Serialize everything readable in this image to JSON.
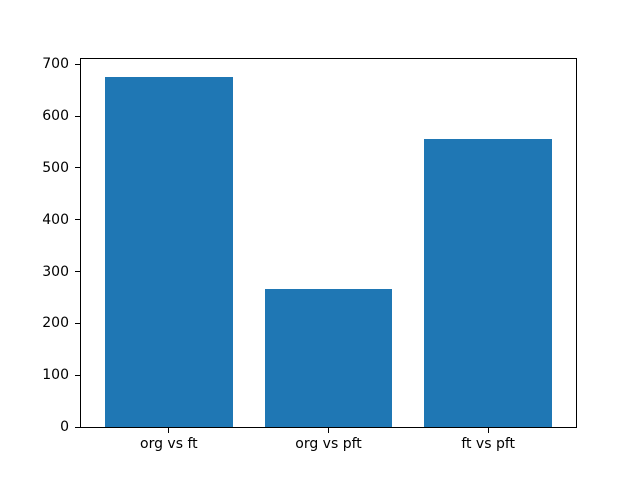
{
  "figure": {
    "background": "#ffffff",
    "plot_background": "#ffffff",
    "spine_color": "#000000",
    "tick_color": "#000000",
    "tick_label_color": "#000000"
  },
  "chart_data": {
    "type": "bar",
    "title": "",
    "xlabel": "",
    "ylabel": "",
    "categories": [
      "org vs ft",
      "org vs pft",
      "ft vs pft"
    ],
    "values": [
      675,
      266,
      555
    ],
    "bar_color": "#1f77b4",
    "bar_width_fraction": 0.8,
    "ylim": [
      0,
      710
    ],
    "yticks": [
      0,
      100,
      200,
      300,
      400,
      500,
      600,
      700
    ],
    "grid": false,
    "legend": "none"
  }
}
